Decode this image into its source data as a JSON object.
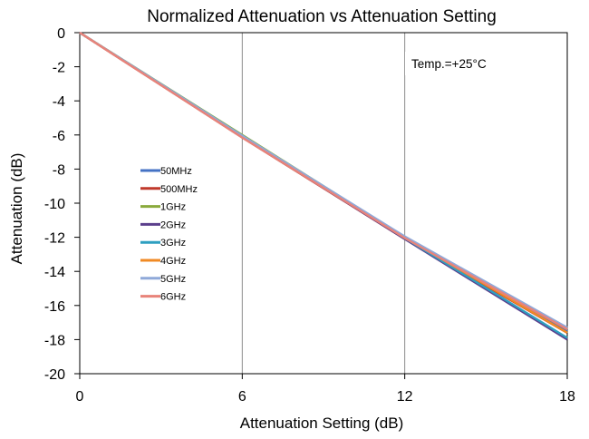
{
  "chart_data": {
    "type": "line",
    "title": "Normalized Attenuation vs Attenuation Setting",
    "xlabel": "Attenuation Setting (dB)",
    "ylabel": "Attenuation (dB)",
    "xlim": [
      0,
      18
    ],
    "ylim": [
      -20,
      0
    ],
    "x_ticks": [
      0,
      6,
      12,
      18
    ],
    "y_ticks": [
      0,
      -2,
      -4,
      -6,
      -8,
      -10,
      -12,
      -14,
      -16,
      -18,
      -20
    ],
    "grid": "vertical",
    "legend_position": "left-middle",
    "annotation": "Temp.=+25°C",
    "x": [
      0,
      6,
      12,
      18
    ],
    "series": [
      {
        "name": "50MHz",
        "color": "#4472c4",
        "values": [
          0,
          -6.1,
          -12.0,
          -17.5
        ]
      },
      {
        "name": "500MHz",
        "color": "#c0392b",
        "values": [
          0,
          -6.15,
          -12.1,
          -17.6
        ]
      },
      {
        "name": "1GHz",
        "color": "#8aaa3c",
        "values": [
          0,
          -6.0,
          -12.0,
          -17.4
        ]
      },
      {
        "name": "2GHz",
        "color": "#5b3f8c",
        "values": [
          0,
          -6.1,
          -12.1,
          -18.0
        ]
      },
      {
        "name": "3GHz",
        "color": "#2e9fc0",
        "values": [
          0,
          -6.05,
          -12.05,
          -17.9
        ]
      },
      {
        "name": "4GHz",
        "color": "#f08a24",
        "values": [
          0,
          -6.1,
          -12.0,
          -17.6
        ]
      },
      {
        "name": "5GHz",
        "color": "#8fa9d9",
        "values": [
          0,
          -6.05,
          -11.95,
          -17.3
        ]
      },
      {
        "name": "6GHz",
        "color": "#e8837a",
        "values": [
          0,
          -6.15,
          -12.05,
          -17.4
        ]
      }
    ]
  }
}
